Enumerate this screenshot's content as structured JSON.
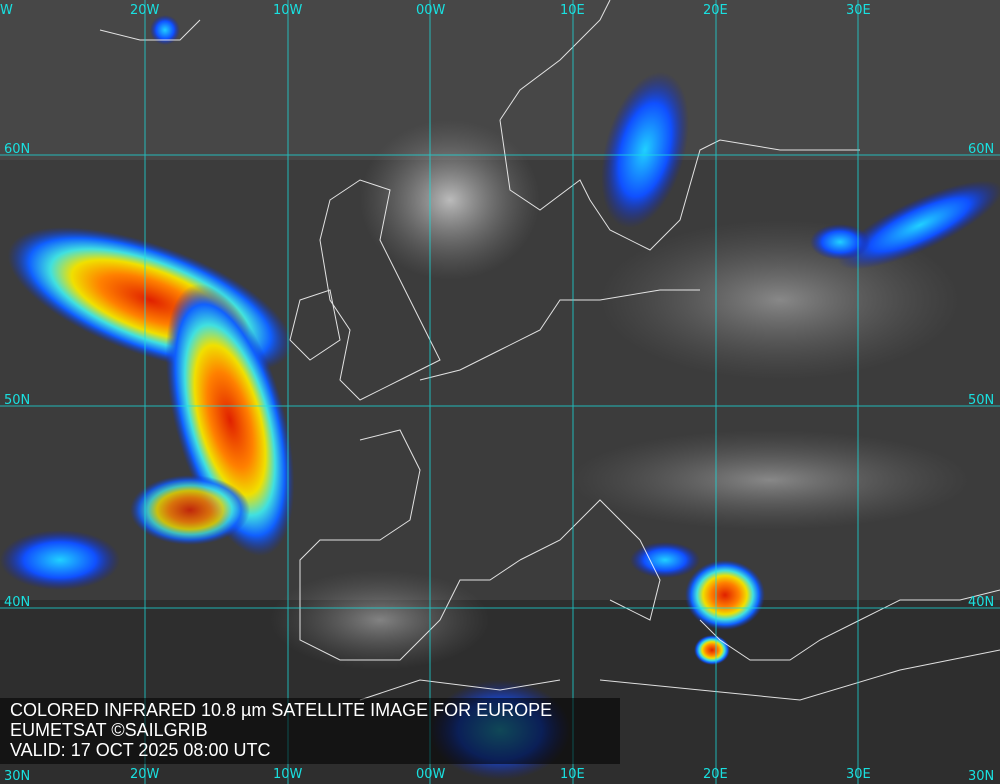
{
  "caption": {
    "title": "COLORED INFRARED 10.8 µm SATELLITE IMAGE FOR EUROPE",
    "source": "EUMETSAT ©SAILGRIB",
    "valid": "VALID:  17 OCT 2025 08:00 UTC"
  },
  "grid": {
    "color": "#19e0e0",
    "top_labels": [
      "W",
      "20W",
      "10W",
      "00W",
      "10E",
      "20E",
      "30E"
    ],
    "bottom_labels": [
      "30N",
      "20W",
      "10W",
      "00W",
      "10E",
      "20E",
      "30E",
      "30N"
    ],
    "left_labels": [
      "60N",
      "50N",
      "40N"
    ],
    "right_labels": [
      "60N",
      "50N",
      "40N"
    ]
  }
}
